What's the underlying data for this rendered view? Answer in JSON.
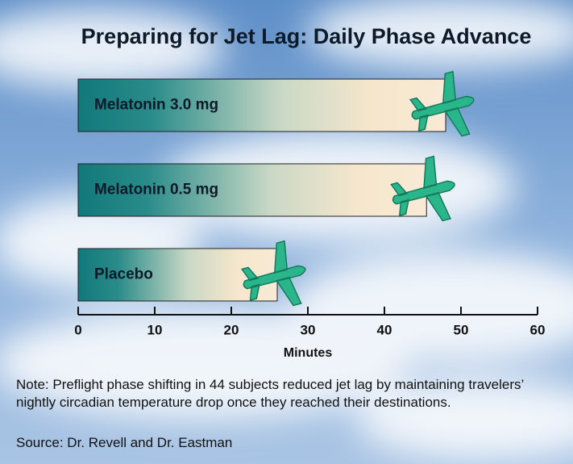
{
  "chart_data": {
    "type": "hbar",
    "title": "Preparing for Jet Lag: Daily Phase Advance",
    "categories": [
      "Melatonin 3.0 mg",
      "Melatonin 0.5 mg",
      "Placebo"
    ],
    "values": [
      48,
      45.5,
      26
    ],
    "xlim": [
      0,
      60
    ],
    "xticks": [
      0,
      10,
      20,
      30,
      40,
      50,
      60
    ],
    "xlabel": "Minutes",
    "note": "Note: Preflight phase shifting in 44 subjects reduced jet lag by maintaining travelers’ nightly circadian temperature drop once they reached their destinations.",
    "source": "Source: Dr. Revell and Dr. Eastman"
  }
}
